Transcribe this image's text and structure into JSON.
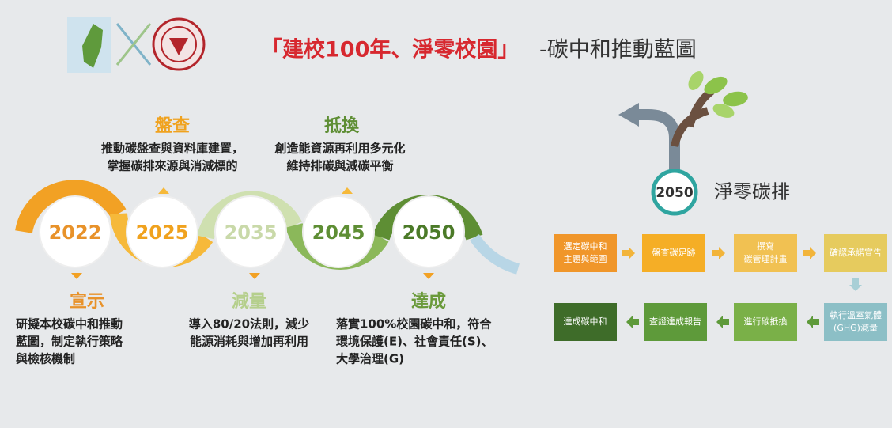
{
  "header": {
    "title_highlight": "「建校100年、淨零校園」",
    "title_rest": "-碳中和推動藍圖"
  },
  "milestones": [
    {
      "year": "2022",
      "label": "宣示",
      "description": [
        "研擬本校碳中和推動",
        "藍圖，制定執行策略",
        "與檢核機制"
      ]
    },
    {
      "year": "2025",
      "label": "盤查",
      "description": [
        "推動碳盤查與資料庫建置，",
        "掌握碳排來源與消減標的"
      ]
    },
    {
      "year": "2035",
      "label": "減量",
      "description": [
        "導入80/20法則，減少",
        "能源消耗與增加再利用"
      ]
    },
    {
      "year": "2045",
      "label": "抵換",
      "description": [
        "創造能資源再利用多元化",
        "維持排碳與減碳平衡"
      ]
    },
    {
      "year": "2050",
      "label": "達成",
      "description": [
        "落實100%校園碳中和，符合",
        "環境保護(E)、社會責任(S)、",
        "大學治理(G)"
      ]
    }
  ],
  "goal": {
    "year": "2050",
    "label": "淨零碳排"
  },
  "steps": [
    [
      "選定碳中和",
      "主題與範圍"
    ],
    [
      "盤查碳足跡"
    ],
    [
      "撰寫",
      "碳管理計畫"
    ],
    [
      "確認承諾宣告"
    ],
    [
      "執行溫室氣體",
      "(GHG)減量"
    ],
    [
      "進行碳抵換"
    ],
    [
      "查證達成報告"
    ],
    [
      "達成碳中和"
    ]
  ]
}
